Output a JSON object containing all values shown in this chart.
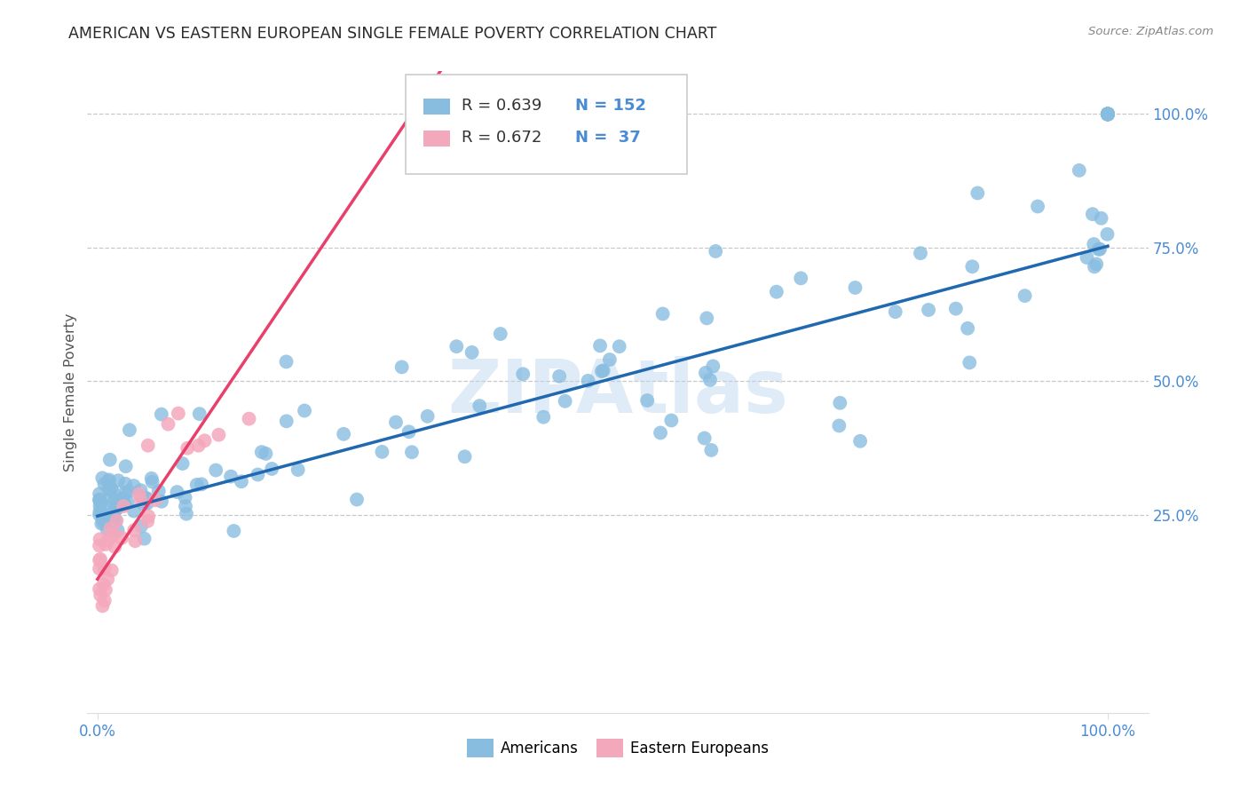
{
  "title": "AMERICAN VS EASTERN EUROPEAN SINGLE FEMALE POVERTY CORRELATION CHART",
  "source": "Source: ZipAtlas.com",
  "ylabel": "Single Female Poverty",
  "blue_r": 0.639,
  "blue_n": 152,
  "pink_r": 0.672,
  "pink_n": 37,
  "blue_color": "#88bde0",
  "pink_color": "#f4a8bc",
  "blue_line_color": "#2068b0",
  "pink_line_color": "#e8406a",
  "blue_label": "Americans",
  "pink_label": "Eastern Europeans",
  "xtick_labels": [
    "0.0%",
    "100.0%"
  ],
  "ytick_labels": [
    "25.0%",
    "50.0%",
    "75.0%",
    "100.0%"
  ],
  "ytick_values": [
    0.25,
    0.5,
    0.75,
    1.0
  ],
  "title_fontsize": 12.5,
  "source_fontsize": 9.5,
  "tick_color": "#4a8cd4",
  "watermark": "ZIPAtlas",
  "legend_r_n_color": "#4a8cd4",
  "legend_r_color": "#333333",
  "xlim_min": -0.01,
  "xlim_max": 1.04,
  "ylim_min": -0.12,
  "ylim_max": 1.08
}
